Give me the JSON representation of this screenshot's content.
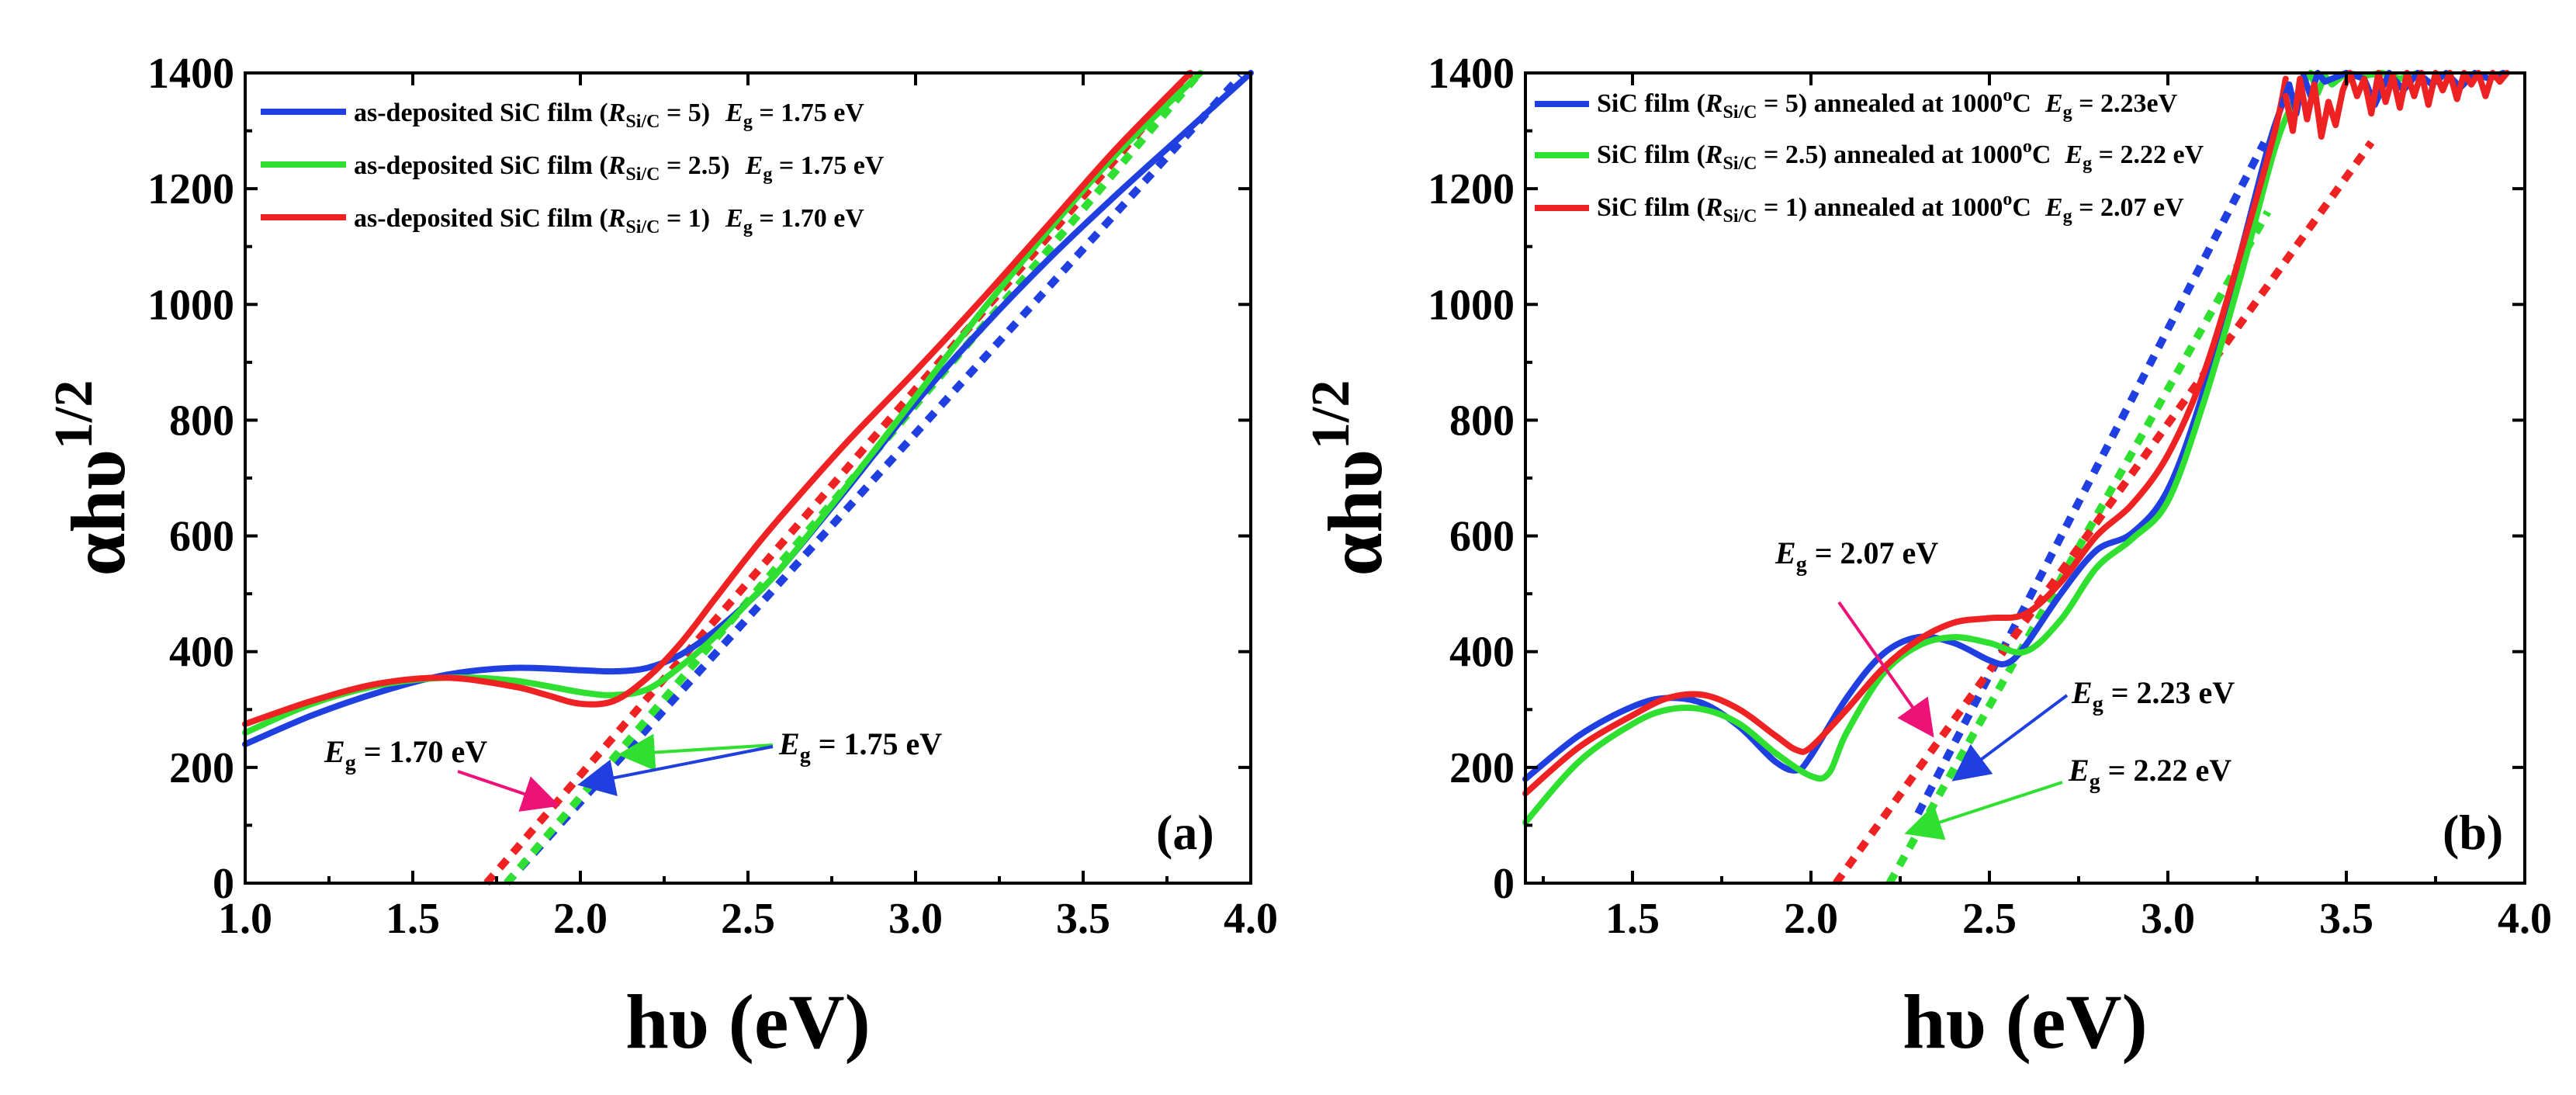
{
  "colors": {
    "blue": "#1f3fe0",
    "green": "#30e030",
    "red": "#ee2222",
    "pink": "#ee1177"
  },
  "chart_data": [
    {
      "type": "line",
      "panel": "(a)",
      "xlabel": "hυ (eV)",
      "ylabel_main": "αhυ",
      "ylabel_sup": "1/2",
      "xlim": [
        1.0,
        4.0
      ],
      "ylim": [
        0,
        1400
      ],
      "xticks": [
        1.0,
        1.5,
        2.0,
        2.5,
        3.0,
        3.5,
        4.0
      ],
      "xtick_labels": [
        "1.0",
        "1.5",
        "2.0",
        "2.5",
        "3.0",
        "3.5",
        "4.0"
      ],
      "yticks": [
        0,
        200,
        400,
        600,
        800,
        1000,
        1200,
        1400
      ],
      "ytick_labels": [
        "0",
        "200",
        "400",
        "600",
        "800",
        "1000",
        "1200",
        "1400"
      ],
      "legend_position": "top-left",
      "legend": [
        {
          "prefix": "as-deposited SiC film (",
          "R": "R",
          "sub": "Si/C",
          "value": " = 5)",
          "eg": "E",
          "eg_sub": "g",
          "eg_val": " = 1.75 eV",
          "color": "blue"
        },
        {
          "prefix": "as-deposited SiC film (",
          "R": "R",
          "sub": "Si/C",
          "value": " = 2.5)",
          "eg": "E",
          "eg_sub": "g",
          "eg_val": " = 1.75 eV",
          "color": "green"
        },
        {
          "prefix": "as-deposited SiC film (",
          "R": "R",
          "sub": "Si/C",
          "value": " = 1)",
          "eg": "E",
          "eg_sub": "g",
          "eg_val": " = 1.70 eV",
          "color": "red"
        }
      ],
      "series": [
        {
          "name": "as-deposited SiC film (RSi/C = 5)",
          "color": "blue",
          "x": [
            1.0,
            1.2,
            1.4,
            1.6,
            1.8,
            2.0,
            2.1,
            2.2,
            2.3,
            2.4,
            2.5,
            2.6,
            2.8,
            3.0,
            3.2,
            3.4,
            3.6,
            3.8,
            4.0
          ],
          "y": [
            240,
            290,
            330,
            360,
            372,
            368,
            366,
            372,
            395,
            435,
            485,
            545,
            685,
            830,
            960,
            1080,
            1190,
            1295,
            1400
          ]
        },
        {
          "name": "as-deposited SiC film (RSi/C = 2.5)",
          "color": "green",
          "x": [
            1.0,
            1.2,
            1.4,
            1.6,
            1.8,
            2.0,
            2.1,
            2.2,
            2.3,
            2.4,
            2.5,
            2.6,
            2.8,
            3.0,
            3.2,
            3.4,
            3.6,
            3.85
          ],
          "y": [
            260,
            310,
            342,
            355,
            350,
            330,
            325,
            335,
            375,
            425,
            485,
            545,
            690,
            840,
            990,
            1130,
            1260,
            1400
          ]
        },
        {
          "name": "as-deposited SiC film (RSi/C = 1)",
          "color": "red",
          "x": [
            1.0,
            1.2,
            1.4,
            1.6,
            1.8,
            1.9,
            2.0,
            2.1,
            2.2,
            2.3,
            2.4,
            2.5,
            2.6,
            2.8,
            3.0,
            3.2,
            3.4,
            3.6,
            3.82
          ],
          "y": [
            275,
            315,
            345,
            355,
            340,
            325,
            310,
            315,
            355,
            415,
            490,
            565,
            635,
            765,
            885,
            1010,
            1140,
            1270,
            1400
          ]
        }
      ],
      "fit_lines": [
        {
          "color": "blue",
          "x": [
            1.78,
            3.97
          ],
          "y": [
            0,
            1395
          ]
        },
        {
          "color": "green",
          "x": [
            1.78,
            3.84
          ],
          "y": [
            0,
            1395
          ]
        },
        {
          "color": "red",
          "x": [
            1.72,
            3.82
          ],
          "y": [
            0,
            1400
          ]
        }
      ],
      "annotations": [
        {
          "E": "E",
          "sub": "g",
          "text": " = 1.70 eV",
          "color": "pink"
        },
        {
          "E": "E",
          "sub": "g",
          "text": " = 1.75 eV",
          "color": "green"
        }
      ]
    },
    {
      "type": "line",
      "panel": "(b)",
      "xlabel": "hυ (eV)",
      "ylabel_main": "αhυ",
      "ylabel_sup": "1/2",
      "xlim": [
        1.2,
        4.0
      ],
      "ylim": [
        0,
        1400
      ],
      "xticks": [
        1.5,
        2.0,
        2.5,
        3.0,
        3.5,
        4.0
      ],
      "xtick_labels": [
        "1.5",
        "2.0",
        "2.5",
        "3.0",
        "3.5",
        "4.0"
      ],
      "yticks": [
        0,
        200,
        400,
        600,
        800,
        1000,
        1200,
        1400
      ],
      "ytick_labels": [
        "0",
        "200",
        "400",
        "600",
        "800",
        "1000",
        "1200",
        "1400"
      ],
      "legend_position": "top-left",
      "legend": [
        {
          "prefix": "SiC film (",
          "R": "R",
          "sub": "Si/C",
          "value": " = 5) annealed at 1000",
          "deg": "o",
          "unit": "C",
          "eg": "E",
          "eg_sub": "g",
          "eg_val": " = 2.23eV",
          "color": "blue"
        },
        {
          "prefix": "SiC film (",
          "R": "R",
          "sub": "Si/C",
          "value": " = 2.5) annealed at 1000",
          "deg": "o",
          "unit": "C",
          "eg": "E",
          "eg_sub": "g",
          "eg_val": " = 2.22 eV",
          "color": "green"
        },
        {
          "prefix": "SiC film (",
          "R": "R",
          "sub": "Si/C",
          "value": " = 1) annealed at 1000",
          "deg": "o",
          "unit": "C",
          "eg": "E",
          "eg_sub": "g",
          "eg_val": " = 2.07 eV",
          "color": "red"
        }
      ],
      "series": [
        {
          "name": "SiC film (RSi/C = 5) annealed at 1000°C",
          "color": "blue",
          "x": [
            1.2,
            1.35,
            1.5,
            1.6,
            1.7,
            1.8,
            1.9,
            1.96,
            2.0,
            2.1,
            2.2,
            2.3,
            2.4,
            2.5,
            2.55,
            2.6,
            2.7,
            2.8,
            2.9,
            3.0,
            3.1,
            3.2,
            3.28,
            3.32
          ],
          "y": [
            180,
            255,
            305,
            320,
            310,
            270,
            210,
            195,
            220,
            320,
            395,
            425,
            415,
            385,
            380,
            410,
            500,
            575,
            605,
            680,
            850,
            1080,
            1270,
            1345
          ]
        },
        {
          "name": "SiC film (RSi/C = 2.5) annealed at 1000°C",
          "color": "green",
          "x": [
            1.2,
            1.35,
            1.5,
            1.6,
            1.7,
            1.8,
            1.9,
            2.0,
            2.05,
            2.1,
            2.2,
            2.3,
            2.4,
            2.5,
            2.6,
            2.7,
            2.8,
            2.9,
            3.0,
            3.1,
            3.2,
            3.3,
            3.36,
            3.4
          ],
          "y": [
            105,
            210,
            275,
            300,
            300,
            275,
            225,
            185,
            190,
            260,
            360,
            410,
            425,
            415,
            400,
            455,
            545,
            595,
            660,
            830,
            1040,
            1270,
            1360,
            1400
          ]
        },
        {
          "name": "SiC film (RSi/C = 1) annealed at 1000°C",
          "color": "red",
          "x": [
            1.2,
            1.35,
            1.5,
            1.6,
            1.7,
            1.8,
            1.9,
            1.96,
            2.0,
            2.1,
            2.2,
            2.3,
            2.4,
            2.5,
            2.6,
            2.7,
            2.8,
            2.9,
            3.0,
            3.1,
            3.2,
            3.3,
            3.33
          ],
          "y": [
            155,
            235,
            290,
            320,
            325,
            300,
            255,
            230,
            235,
            300,
            370,
            420,
            450,
            458,
            465,
            520,
            600,
            655,
            740,
            880,
            1080,
            1300,
            1390
          ]
        }
      ],
      "noisy_tail": {
        "red": {
          "x": [
            3.33,
            3.35,
            3.37,
            3.39,
            3.41,
            3.43,
            3.45,
            3.47,
            3.49,
            3.51,
            3.53,
            3.55,
            3.57,
            3.59,
            3.61,
            3.63,
            3.65,
            3.67,
            3.69,
            3.71,
            3.73,
            3.75,
            3.77,
            3.79,
            3.81,
            3.83,
            3.85,
            3.87,
            3.89,
            3.91,
            3.93,
            3.95
          ],
          "y": [
            1360,
            1300,
            1390,
            1320,
            1380,
            1290,
            1350,
            1310,
            1370,
            1400,
            1360,
            1390,
            1330,
            1400,
            1350,
            1395,
            1340,
            1400,
            1360,
            1400,
            1345,
            1400,
            1370,
            1400,
            1355,
            1400,
            1380,
            1400,
            1360,
            1400,
            1385,
            1400
          ]
        },
        "blue": {
          "x": [
            3.32,
            3.34,
            3.36,
            3.38,
            3.4,
            3.42,
            3.44,
            3.5,
            3.55,
            3.58,
            3.62,
            3.66,
            3.7,
            3.74,
            3.78,
            3.82,
            3.86,
            3.9,
            3.94
          ],
          "y": [
            1345,
            1380,
            1330,
            1395,
            1360,
            1400,
            1385,
            1400,
            1390,
            1345,
            1400,
            1370,
            1400,
            1380,
            1400,
            1375,
            1400,
            1390,
            1400
          ]
        },
        "green": {
          "x": [
            3.4,
            3.42,
            3.44,
            3.46,
            3.5,
            3.55,
            3.6,
            3.65,
            3.7
          ],
          "y": [
            1400,
            1365,
            1395,
            1380,
            1400,
            1395,
            1400,
            1390,
            1400
          ]
        }
      },
      "fit_lines": [
        {
          "color": "blue",
          "x": [
            2.3,
            3.27
          ],
          "y": [
            120,
            1280
          ]
        },
        {
          "color": "green",
          "x": [
            2.22,
            3.28
          ],
          "y": [
            0,
            1160
          ]
        },
        {
          "color": "red",
          "x": [
            2.07,
            3.57
          ],
          "y": [
            0,
            1280
          ]
        }
      ],
      "annotations": [
        {
          "E": "E",
          "sub": "g",
          "text": " = 2.07 eV",
          "color": "pink"
        },
        {
          "E": "E",
          "sub": "g",
          "text": " =  2.23 eV",
          "color": "blue"
        },
        {
          "E": "E",
          "sub": "g",
          "text": " = 2.22 eV",
          "color": "green"
        }
      ]
    }
  ]
}
